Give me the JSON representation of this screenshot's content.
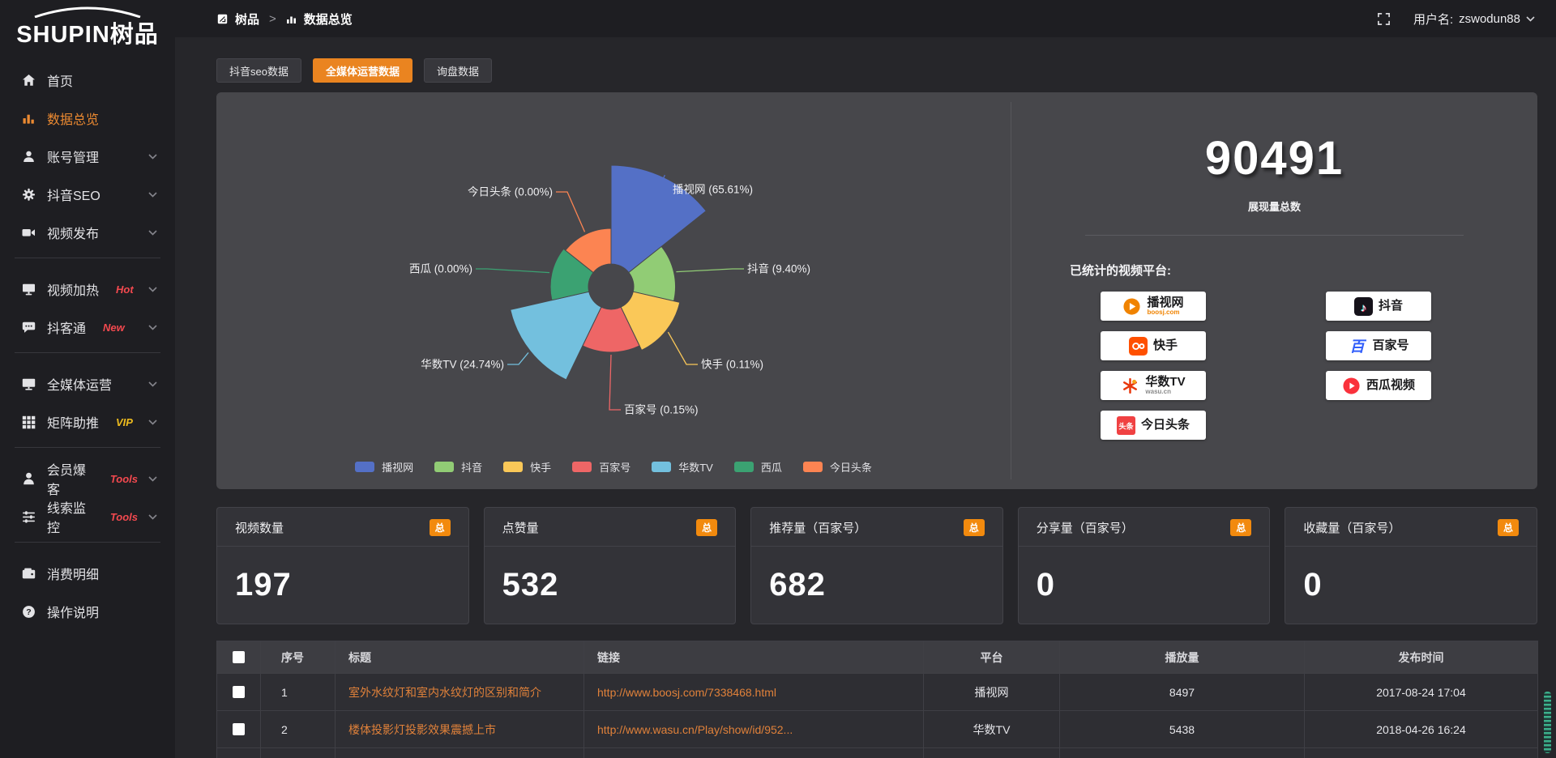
{
  "brand": {
    "logo_en": "SHUPIN",
    "logo_cn": "树品"
  },
  "header": {
    "breadcrumb_root": "树品",
    "breadcrumb_sep": ">",
    "breadcrumb_current": "数据总览",
    "username_prefix": "用户名:",
    "username": "zswodun88"
  },
  "sidebar": {
    "items": [
      {
        "label": "首页",
        "icon": "home"
      },
      {
        "label": "数据总览",
        "icon": "chart",
        "active": true
      },
      {
        "label": "账号管理",
        "icon": "user",
        "chevron": true
      },
      {
        "label": "抖音SEO",
        "icon": "gear",
        "chevron": true
      },
      {
        "label": "视频发布",
        "icon": "video",
        "chevron": true
      },
      {
        "divider": true
      },
      {
        "label": "视频加热",
        "icon": "heat",
        "tag": "Hot",
        "tag_color": "#f3494f",
        "chevron": true
      },
      {
        "label": "抖客通",
        "icon": "chat",
        "tag": "New",
        "tag_color": "#f3494f",
        "chevron": true
      },
      {
        "divider": true
      },
      {
        "label": "全媒体运营",
        "icon": "monitor",
        "chevron": true
      },
      {
        "label": "矩阵助推",
        "icon": "grid",
        "tag": "VIP",
        "tag_color": "#eebc1e",
        "chevron": true
      },
      {
        "divider": true
      },
      {
        "label": "会员爆客",
        "icon": "member",
        "tag": "Tools",
        "tag_color": "#f3494f",
        "chevron": true
      },
      {
        "label": "线索监控",
        "icon": "sliders",
        "tag": "Tools",
        "tag_color": "#f3494f",
        "chevron": true
      },
      {
        "divider": true
      },
      {
        "label": "消费明细",
        "icon": "wallet"
      },
      {
        "label": "操作说明",
        "icon": "help"
      }
    ]
  },
  "tabs": [
    {
      "label": "抖音seo数据",
      "active": false
    },
    {
      "label": "全媒体运营数据",
      "active": true
    },
    {
      "label": "询盘数据",
      "active": false
    }
  ],
  "chart_data": {
    "type": "pie",
    "variant": "nightingale-rose",
    "categories": [
      "播视网",
      "抖音",
      "快手",
      "百家号",
      "华数TV",
      "西瓜",
      "今日头条"
    ],
    "values_percent": [
      65.61,
      9.4,
      0.11,
      0.15,
      24.74,
      0.0,
      0.0
    ],
    "labels": [
      "播视网 (65.61%)",
      "抖音 (9.40%)",
      "快手 (0.11%)",
      "百家号 (0.15%)",
      "华数TV (24.74%)",
      "西瓜 (0.00%)",
      "今日头条 (0.00%)"
    ],
    "colors": [
      "#5470c6",
      "#91cc75",
      "#fac858",
      "#ee6666",
      "#73c0de",
      "#3ba272",
      "#fc8452"
    ],
    "radius_fractions": [
      1.0,
      0.53,
      0.58,
      0.54,
      0.85,
      0.5,
      0.48
    ],
    "legend": [
      "播视网",
      "抖音",
      "快手",
      "百家号",
      "华数TV",
      "西瓜",
      "今日头条"
    ],
    "legend_position": "bottom"
  },
  "summary": {
    "total_value": "90491",
    "total_label": "展现量总数",
    "platforms_heading": "已统计的视频平台:",
    "platforms_left": [
      {
        "name": "播视网",
        "sub": "boosj.com",
        "sub_color": "#f08300",
        "icon": "boosj"
      },
      {
        "name": "快手",
        "icon": "kuaishou"
      },
      {
        "name": "华数TV",
        "sub": "wasu.cn",
        "sub_color": "#8a8a8a",
        "icon": "wasu"
      },
      {
        "name": "今日头条",
        "icon": "toutiao"
      }
    ],
    "platforms_right": [
      {
        "name": "抖音",
        "icon": "douyin"
      },
      {
        "name": "百家号",
        "icon": "baijiahao"
      },
      {
        "name": "西瓜视频",
        "icon": "xigua"
      }
    ]
  },
  "stats": [
    {
      "title": "视频数量",
      "badge": "总",
      "value": "197"
    },
    {
      "title": "点赞量",
      "badge": "总",
      "value": "532"
    },
    {
      "title": "推荐量（百家号）",
      "badge": "总",
      "value": "682"
    },
    {
      "title": "分享量（百家号）",
      "badge": "总",
      "value": "0"
    },
    {
      "title": "收藏量（百家号）",
      "badge": "总",
      "value": "0"
    }
  ],
  "table": {
    "headers": [
      "序号",
      "标题",
      "链接",
      "平台",
      "播放量",
      "发布时间"
    ],
    "rows": [
      {
        "no": "1",
        "title": "室外水纹灯和室内水纹灯的区别和简介",
        "link": "http://www.boosj.com/7338468.html",
        "platform": "播视网",
        "plays": "8497",
        "time": "2017-08-24 17:04"
      },
      {
        "no": "2",
        "title": "楼体投影灯投影效果震撼上市",
        "link": "http://www.wasu.cn/Play/show/id/952...",
        "platform": "华数TV",
        "plays": "5438",
        "time": "2018-04-26 16:24"
      }
    ]
  },
  "colors": {
    "accent": "#ea8420",
    "badge": "#f28a0e",
    "link": "#e0813a"
  }
}
